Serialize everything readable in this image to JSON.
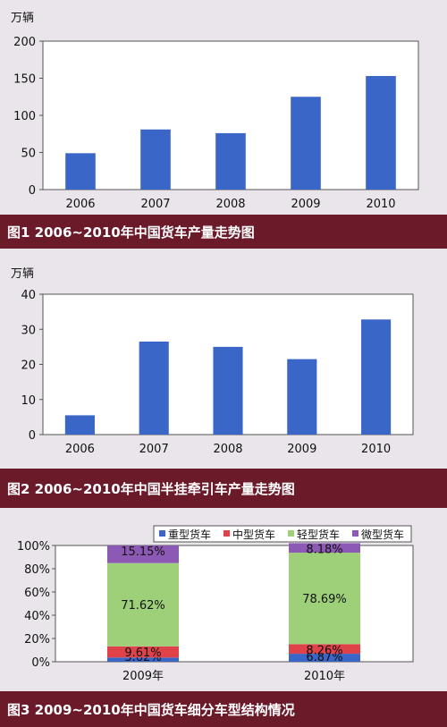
{
  "chart_data": [
    {
      "type": "bar",
      "unit_label": "万辆",
      "categories": [
        "2006",
        "2007",
        "2008",
        "2009",
        "2010"
      ],
      "values": [
        49,
        81,
        76,
        125,
        153
      ],
      "ylim": [
        0,
        200
      ],
      "yticks": [
        0,
        50,
        100,
        150,
        200
      ],
      "title": "图1 2006~2010年中国货车产量走势图",
      "bar_color": "#3a66c8",
      "grid": false
    },
    {
      "type": "bar",
      "unit_label": "万辆",
      "categories": [
        "2006",
        "2007",
        "2008",
        "2009",
        "2010"
      ],
      "values": [
        5.5,
        26.5,
        25,
        21.5,
        32.8
      ],
      "ylim": [
        0,
        40
      ],
      "yticks": [
        0,
        10,
        20,
        30,
        40
      ],
      "title": "图2 2006~2010年中国半挂牵引车产量走势图",
      "bar_color": "#3a66c8",
      "grid": false
    },
    {
      "type": "stacked_bar",
      "categories": [
        "2009年",
        "2010年"
      ],
      "ylim": [
        0,
        100
      ],
      "yticks": [
        "0%",
        "20%",
        "40%",
        "60%",
        "80%",
        "100%"
      ],
      "legend_position": "top-right",
      "series": [
        {
          "name": "重型货车",
          "color": "#3a66c8",
          "values": [
            3.62,
            6.87
          ],
          "labels": [
            "3.62%",
            "6.87%"
          ]
        },
        {
          "name": "中型货车",
          "color": "#e0424a",
          "values": [
            9.61,
            8.26
          ],
          "labels": [
            "9.61%",
            "8.26%"
          ]
        },
        {
          "name": "轻型货车",
          "color": "#9ed07a",
          "values": [
            71.62,
            78.69
          ],
          "labels": [
            "71.62%",
            "78.69%"
          ]
        },
        {
          "name": "微型货车",
          "color": "#8c5ab4",
          "values": [
            15.15,
            8.18
          ],
          "labels": [
            "15.15%",
            "8.18%"
          ]
        }
      ],
      "title": "图3 2009~2010年中国货车细分车型结构情况"
    }
  ]
}
